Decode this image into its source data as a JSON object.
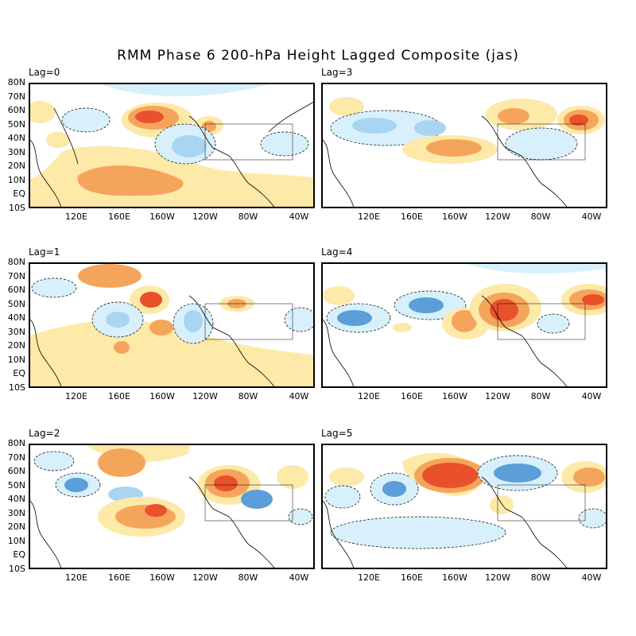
{
  "title": "RMM Phase 6 200-hPa Height Lagged Composite (jas)",
  "lat_labels": [
    "80N",
    "70N",
    "60N",
    "50N",
    "40N",
    "30N",
    "20N",
    "10N",
    "EQ",
    "10S"
  ],
  "lon_labels": [
    "120E",
    "160E",
    "160W",
    "120W",
    "80W",
    "40W"
  ],
  "colors": {
    "pos1": "#fde9a8",
    "pos2": "#f5a55b",
    "pos3": "#e8512b",
    "pos4": "#d7301f",
    "neg1": "#d7f0fb",
    "neg2": "#a8d5f2",
    "neg3": "#5b9ed9",
    "coast": "#000000"
  },
  "panels": [
    {
      "label": "Lag=0",
      "id": "lag0"
    },
    {
      "label": "Lag=3",
      "id": "lag3"
    },
    {
      "label": "Lag=1",
      "id": "lag1"
    },
    {
      "label": "Lag=4",
      "id": "lag4"
    },
    {
      "label": "Lag=2",
      "id": "lag2"
    },
    {
      "label": "Lag=5",
      "id": "lag5"
    }
  ]
}
